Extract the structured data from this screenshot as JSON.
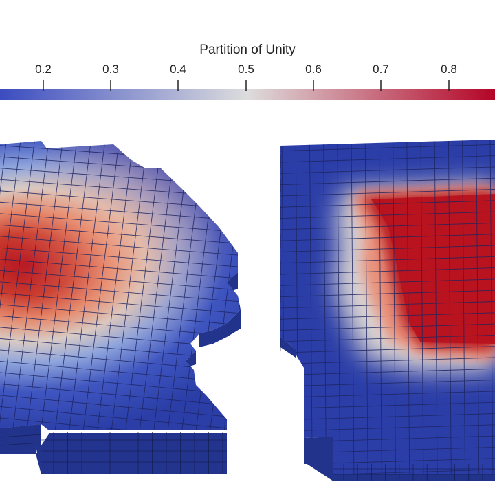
{
  "colorbar": {
    "title": "Partition of Unity",
    "ticks": [
      "0.2",
      "0.3",
      "0.4",
      "0.5",
      "0.6",
      "0.7",
      "0.8"
    ],
    "colormap": [
      "#3b4cc0",
      "#dddddd",
      "#b40426"
    ]
  },
  "colors": {
    "low": "#2b3ea8",
    "high": "#bb1020",
    "grid": "#1d2560",
    "side": "#23348f"
  }
}
